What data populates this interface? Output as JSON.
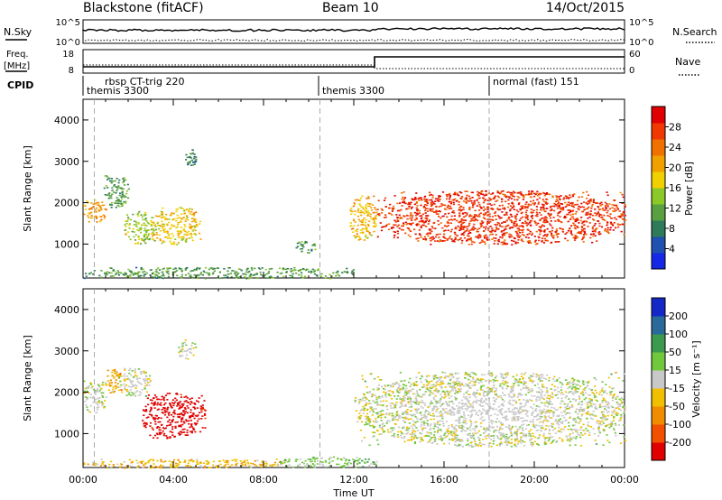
{
  "header": {
    "station": "Blackstone (fitACF)",
    "beam": "Beam 10",
    "date": "14/Oct/2015"
  },
  "top_panels": {
    "nsky_label": "N.Sky",
    "nsky_ticks": [
      "10^5",
      "10^0"
    ],
    "nsearch_label": "N.Search",
    "nsearch_ticks": [
      "10^5",
      "10^0"
    ],
    "freq_label_1": "Freq.",
    "freq_label_2": "[MHz]",
    "freq_ticks": [
      "18",
      "8"
    ],
    "nave_label": "Nave",
    "nave_ticks": [
      "60",
      "0"
    ],
    "cpid_label": "CPID"
  },
  "cpid_segments": [
    {
      "t": 0.0,
      "lines": [
        "rbsp CT-trig 220",
        "themis 3300"
      ]
    },
    {
      "t": 10.5,
      "lines": [
        "themis 3300"
      ]
    },
    {
      "t": 18.0,
      "lines": [
        "normal (fast) 151"
      ]
    }
  ],
  "axes": {
    "x_ticks": [
      "00:00",
      "04:00",
      "08:00",
      "12:00",
      "16:00",
      "20:00",
      "00:00"
    ],
    "xlabel": "Time UT",
    "y_ticks": [
      "1000",
      "2000",
      "3000",
      "4000"
    ],
    "ylabel": "Slant Range [km]"
  },
  "power_bar": {
    "label": "Power [dB]",
    "ticks": [
      "4",
      "8",
      "12",
      "16",
      "20",
      "24",
      "28"
    ],
    "colors": [
      "#1428e6",
      "#2050b0",
      "#2f7a5a",
      "#58a040",
      "#8cc828",
      "#f0d000",
      "#f0a000",
      "#f07000",
      "#f03800",
      "#e00000"
    ]
  },
  "velocity_bar": {
    "label": "Velocity [m s⁻¹]",
    "ticks": [
      "200",
      "100",
      "50",
      "15",
      "-15",
      "-50",
      "-100",
      "-200"
    ],
    "colors": [
      "#1428c8",
      "#2a6a9a",
      "#3c9a50",
      "#72c83c",
      "#c8c8c8",
      "#f0c000",
      "#f08c00",
      "#f05000",
      "#e00000"
    ]
  },
  "chart_data": {
    "type": "heatmap",
    "title": "Blackstone (fitACF)   Beam 10   14/Oct/2015",
    "xlabel": "Time UT",
    "ylabel": "Slant Range [km]",
    "xlim": [
      0,
      24
    ],
    "ylim": [
      180,
      4500
    ],
    "panels": [
      {
        "quantity": "Power",
        "unit": "dB",
        "clim": [
          0,
          30
        ],
        "regions": [
          {
            "t": [
              0.0,
              1.0
            ],
            "r": [
              1500,
              2100
            ],
            "power": 20
          },
          {
            "t": [
              0.9,
              2.0
            ],
            "r": [
              1900,
              2700
            ],
            "power": 10
          },
          {
            "t": [
              1.8,
              3.2
            ],
            "r": [
              1000,
              1800
            ],
            "power": 14
          },
          {
            "t": [
              3.0,
              5.2
            ],
            "r": [
              1000,
              1900
            ],
            "power": 17
          },
          {
            "t": [
              4.5,
              5.0
            ],
            "r": [
              2900,
              3300
            ],
            "power": 8
          },
          {
            "t": [
              9.4,
              10.3
            ],
            "r": [
              800,
              1100
            ],
            "power": 9
          },
          {
            "t": [
              0.0,
              12.0
            ],
            "r": [
              180,
              450
            ],
            "power": 10
          },
          {
            "t": [
              11.8,
              13.0
            ],
            "r": [
              1100,
              2200
            ],
            "power": 18
          },
          {
            "t": [
              13.0,
              24.0
            ],
            "r": [
              1000,
              2300
            ],
            "power": 26
          }
        ]
      },
      {
        "quantity": "Velocity",
        "unit": "m s^-1",
        "clim": [
          -200,
          200
        ],
        "regions": [
          {
            "t": [
              0.0,
              1.0
            ],
            "r": [
              1500,
              2300
            ],
            "velocity": 0
          },
          {
            "t": [
              0.9,
              1.7
            ],
            "r": [
              2000,
              2600
            ],
            "velocity": -60
          },
          {
            "t": [
              1.5,
              3.0
            ],
            "r": [
              1900,
              2600
            ],
            "velocity": 0
          },
          {
            "t": [
              2.6,
              5.4
            ],
            "r": [
              900,
              2000
            ],
            "velocity": -200
          },
          {
            "t": [
              4.2,
              5.0
            ],
            "r": [
              2800,
              3300
            ],
            "velocity": 0
          },
          {
            "t": [
              0.0,
              9.0
            ],
            "r": [
              180,
              400
            ],
            "velocity": -50
          },
          {
            "t": [
              8.5,
              13.0
            ],
            "r": [
              180,
              450
            ],
            "velocity": 40
          },
          {
            "t": [
              12.0,
              24.0
            ],
            "r": [
              700,
              2500
            ],
            "velocity": 0
          }
        ]
      }
    ]
  }
}
